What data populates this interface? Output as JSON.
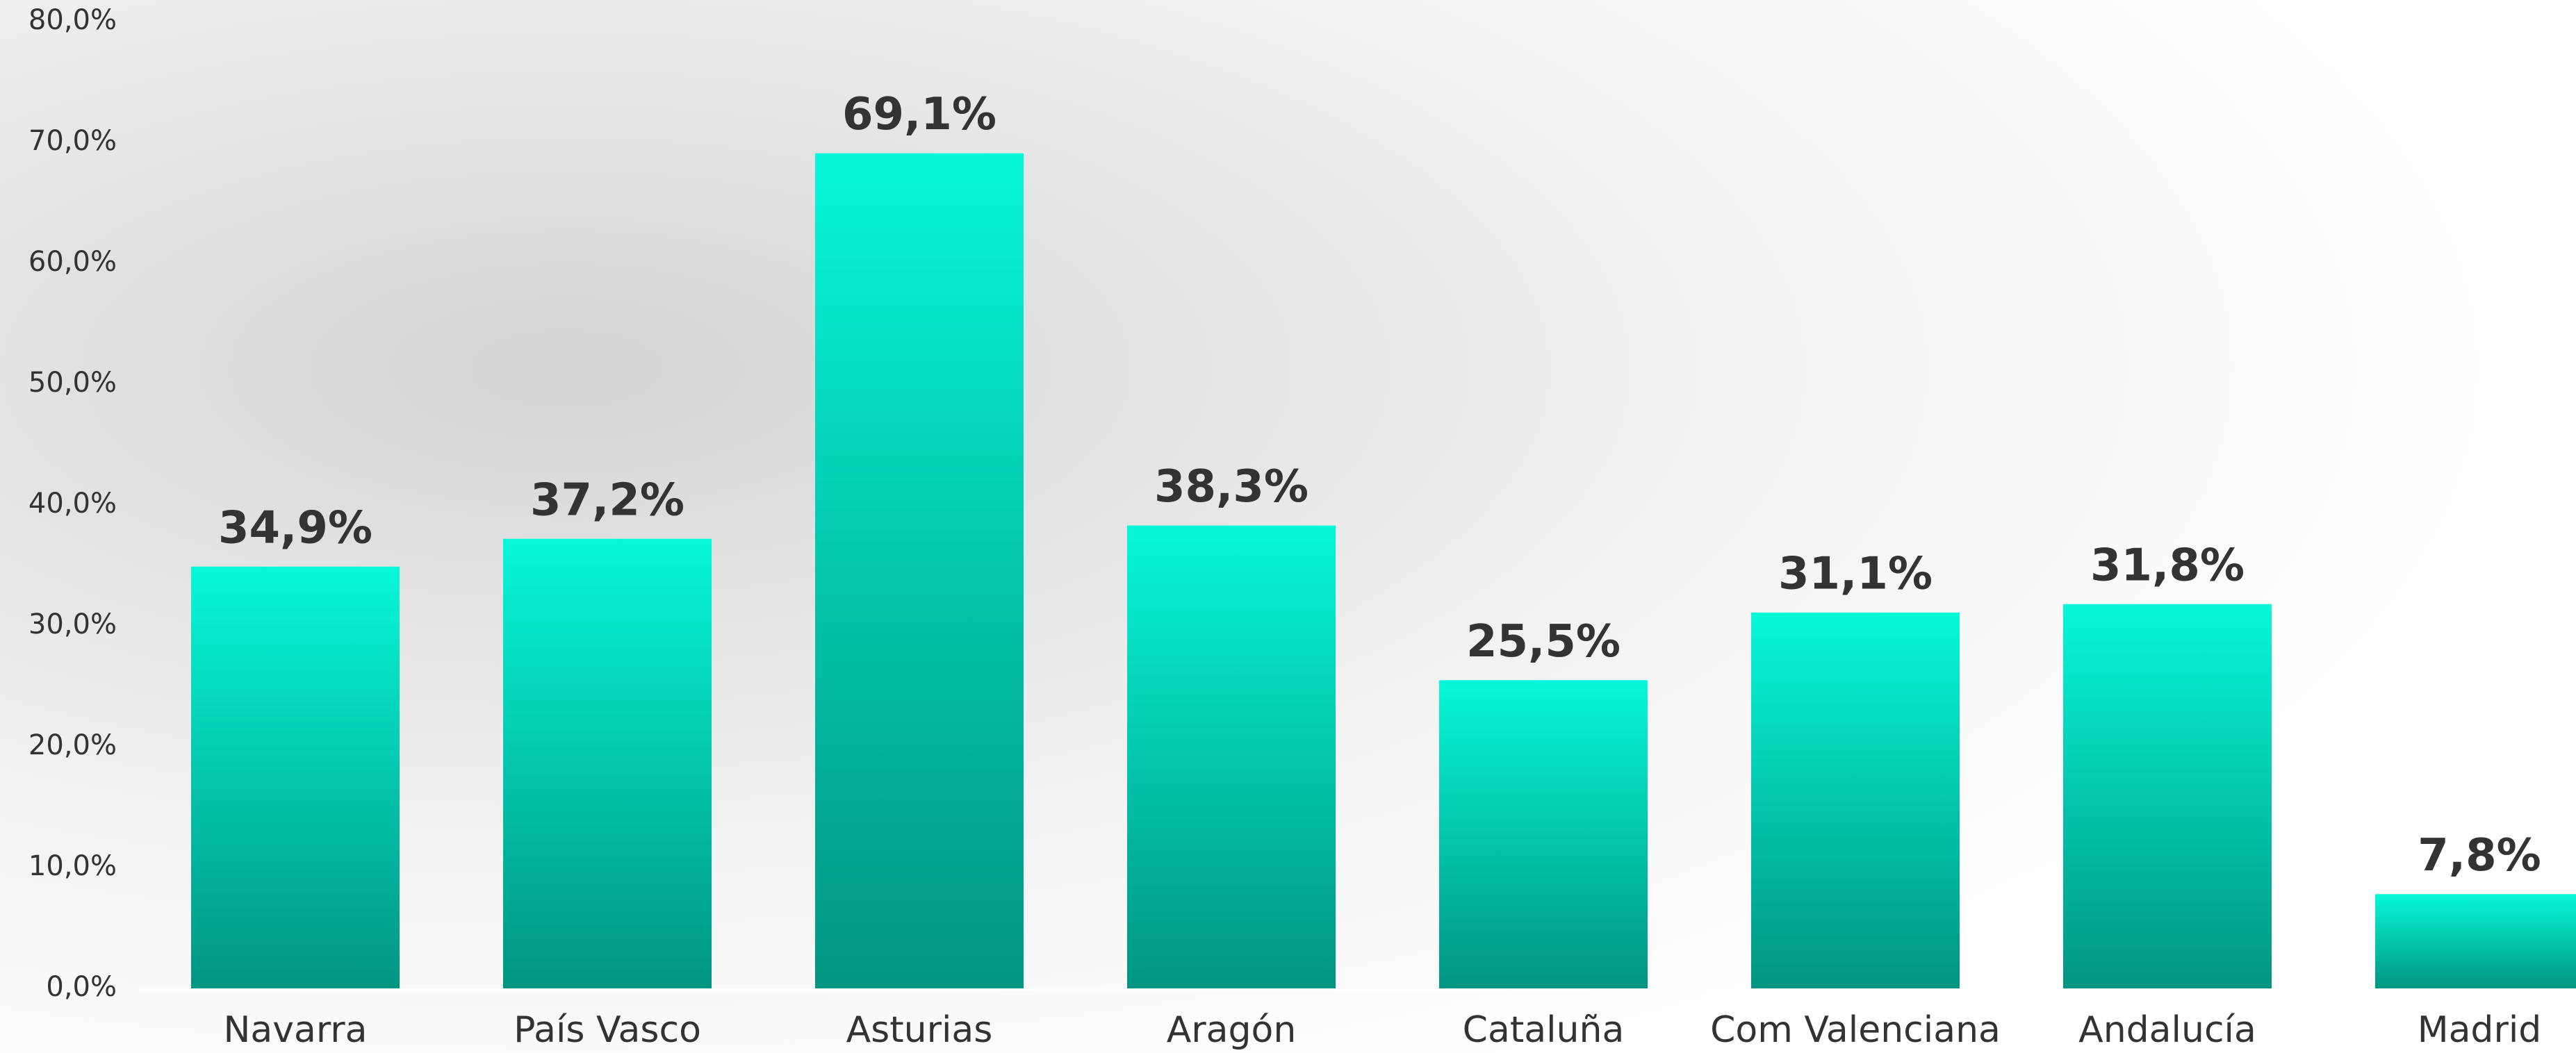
{
  "chart_data": {
    "type": "bar",
    "categories": [
      "Navarra",
      "País Vasco",
      "Asturias",
      "Aragón",
      "Cataluña",
      "Com Valenciana",
      "Andalucía",
      "Madrid"
    ],
    "values": [
      34.9,
      37.2,
      69.1,
      38.3,
      25.5,
      31.1,
      31.8,
      7.8
    ],
    "value_labels": [
      "34,9%",
      "37,2%",
      "69,1%",
      "38,3%",
      "25,5%",
      "31,1%",
      "31,8%",
      "7,8%"
    ],
    "color": "#05d9c0",
    "ylim": [
      0,
      80
    ],
    "yticks": [
      {
        "value": 0,
        "label": "0,0%"
      },
      {
        "value": 10,
        "label": "10,0%"
      },
      {
        "value": 20,
        "label": "20,0%"
      },
      {
        "value": 30,
        "label": "30,0%"
      },
      {
        "value": 40,
        "label": "40,0%"
      },
      {
        "value": 50,
        "label": "50,0%"
      },
      {
        "value": 60,
        "label": "60,0%"
      },
      {
        "value": 70,
        "label": "70,0%"
      },
      {
        "value": 80,
        "label": "80,0%"
      }
    ],
    "grid": false
  }
}
